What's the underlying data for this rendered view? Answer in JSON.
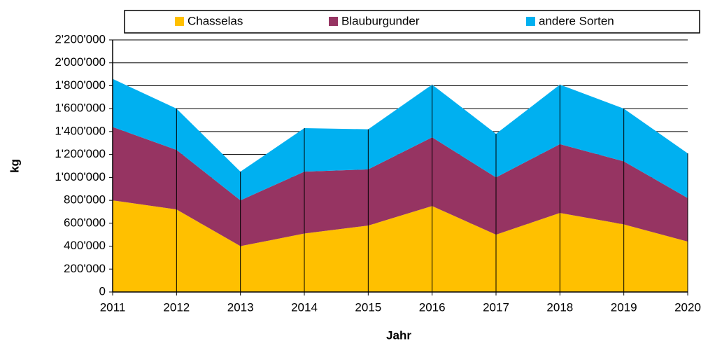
{
  "chart_data": {
    "type": "stacked_area",
    "x": [
      2011,
      2012,
      2013,
      2014,
      2015,
      2016,
      2017,
      2018,
      2019,
      2020
    ],
    "series": [
      {
        "name": "Chasselas",
        "color": "#ffc000",
        "values": [
          800000,
          720000,
          400000,
          510000,
          580000,
          750000,
          500000,
          690000,
          590000,
          440000
        ]
      },
      {
        "name": "Blauburgunder",
        "color": "#963462",
        "values": [
          640000,
          520000,
          400000,
          540000,
          490000,
          600000,
          500000,
          600000,
          550000,
          380000
        ]
      },
      {
        "name": "andere Sorten",
        "color": "#00b0f0",
        "values": [
          420000,
          360000,
          250000,
          380000,
          350000,
          460000,
          380000,
          520000,
          460000,
          390000
        ]
      }
    ],
    "xlim": [
      2011,
      2020
    ],
    "xticks": [
      2011,
      2012,
      2013,
      2014,
      2015,
      2016,
      2017,
      2018,
      2019,
      2020
    ],
    "ylim": [
      0,
      2200000
    ],
    "yticks": [
      0,
      {
        "value": 200000,
        "label": "200'000"
      },
      {
        "value": 400000,
        "label": "400'000"
      },
      {
        "value": 600000,
        "label": "600'000"
      },
      {
        "value": 800000,
        "label": "800'000"
      },
      {
        "value": 1000000,
        "label": "1'000'000"
      },
      {
        "value": 1200000,
        "label": "1'200'000"
      },
      {
        "value": 1400000,
        "label": "1'400'000"
      },
      {
        "value": 1600000,
        "label": "1'600'000"
      },
      {
        "value": 1800000,
        "label": "1'800'000"
      },
      {
        "value": 2000000,
        "label": "2'000'000"
      },
      {
        "value": 2200000,
        "label": "2'200'000"
      }
    ],
    "xlabel": "Jahr",
    "ylabel": "kg",
    "grid": true,
    "legend": "top"
  }
}
